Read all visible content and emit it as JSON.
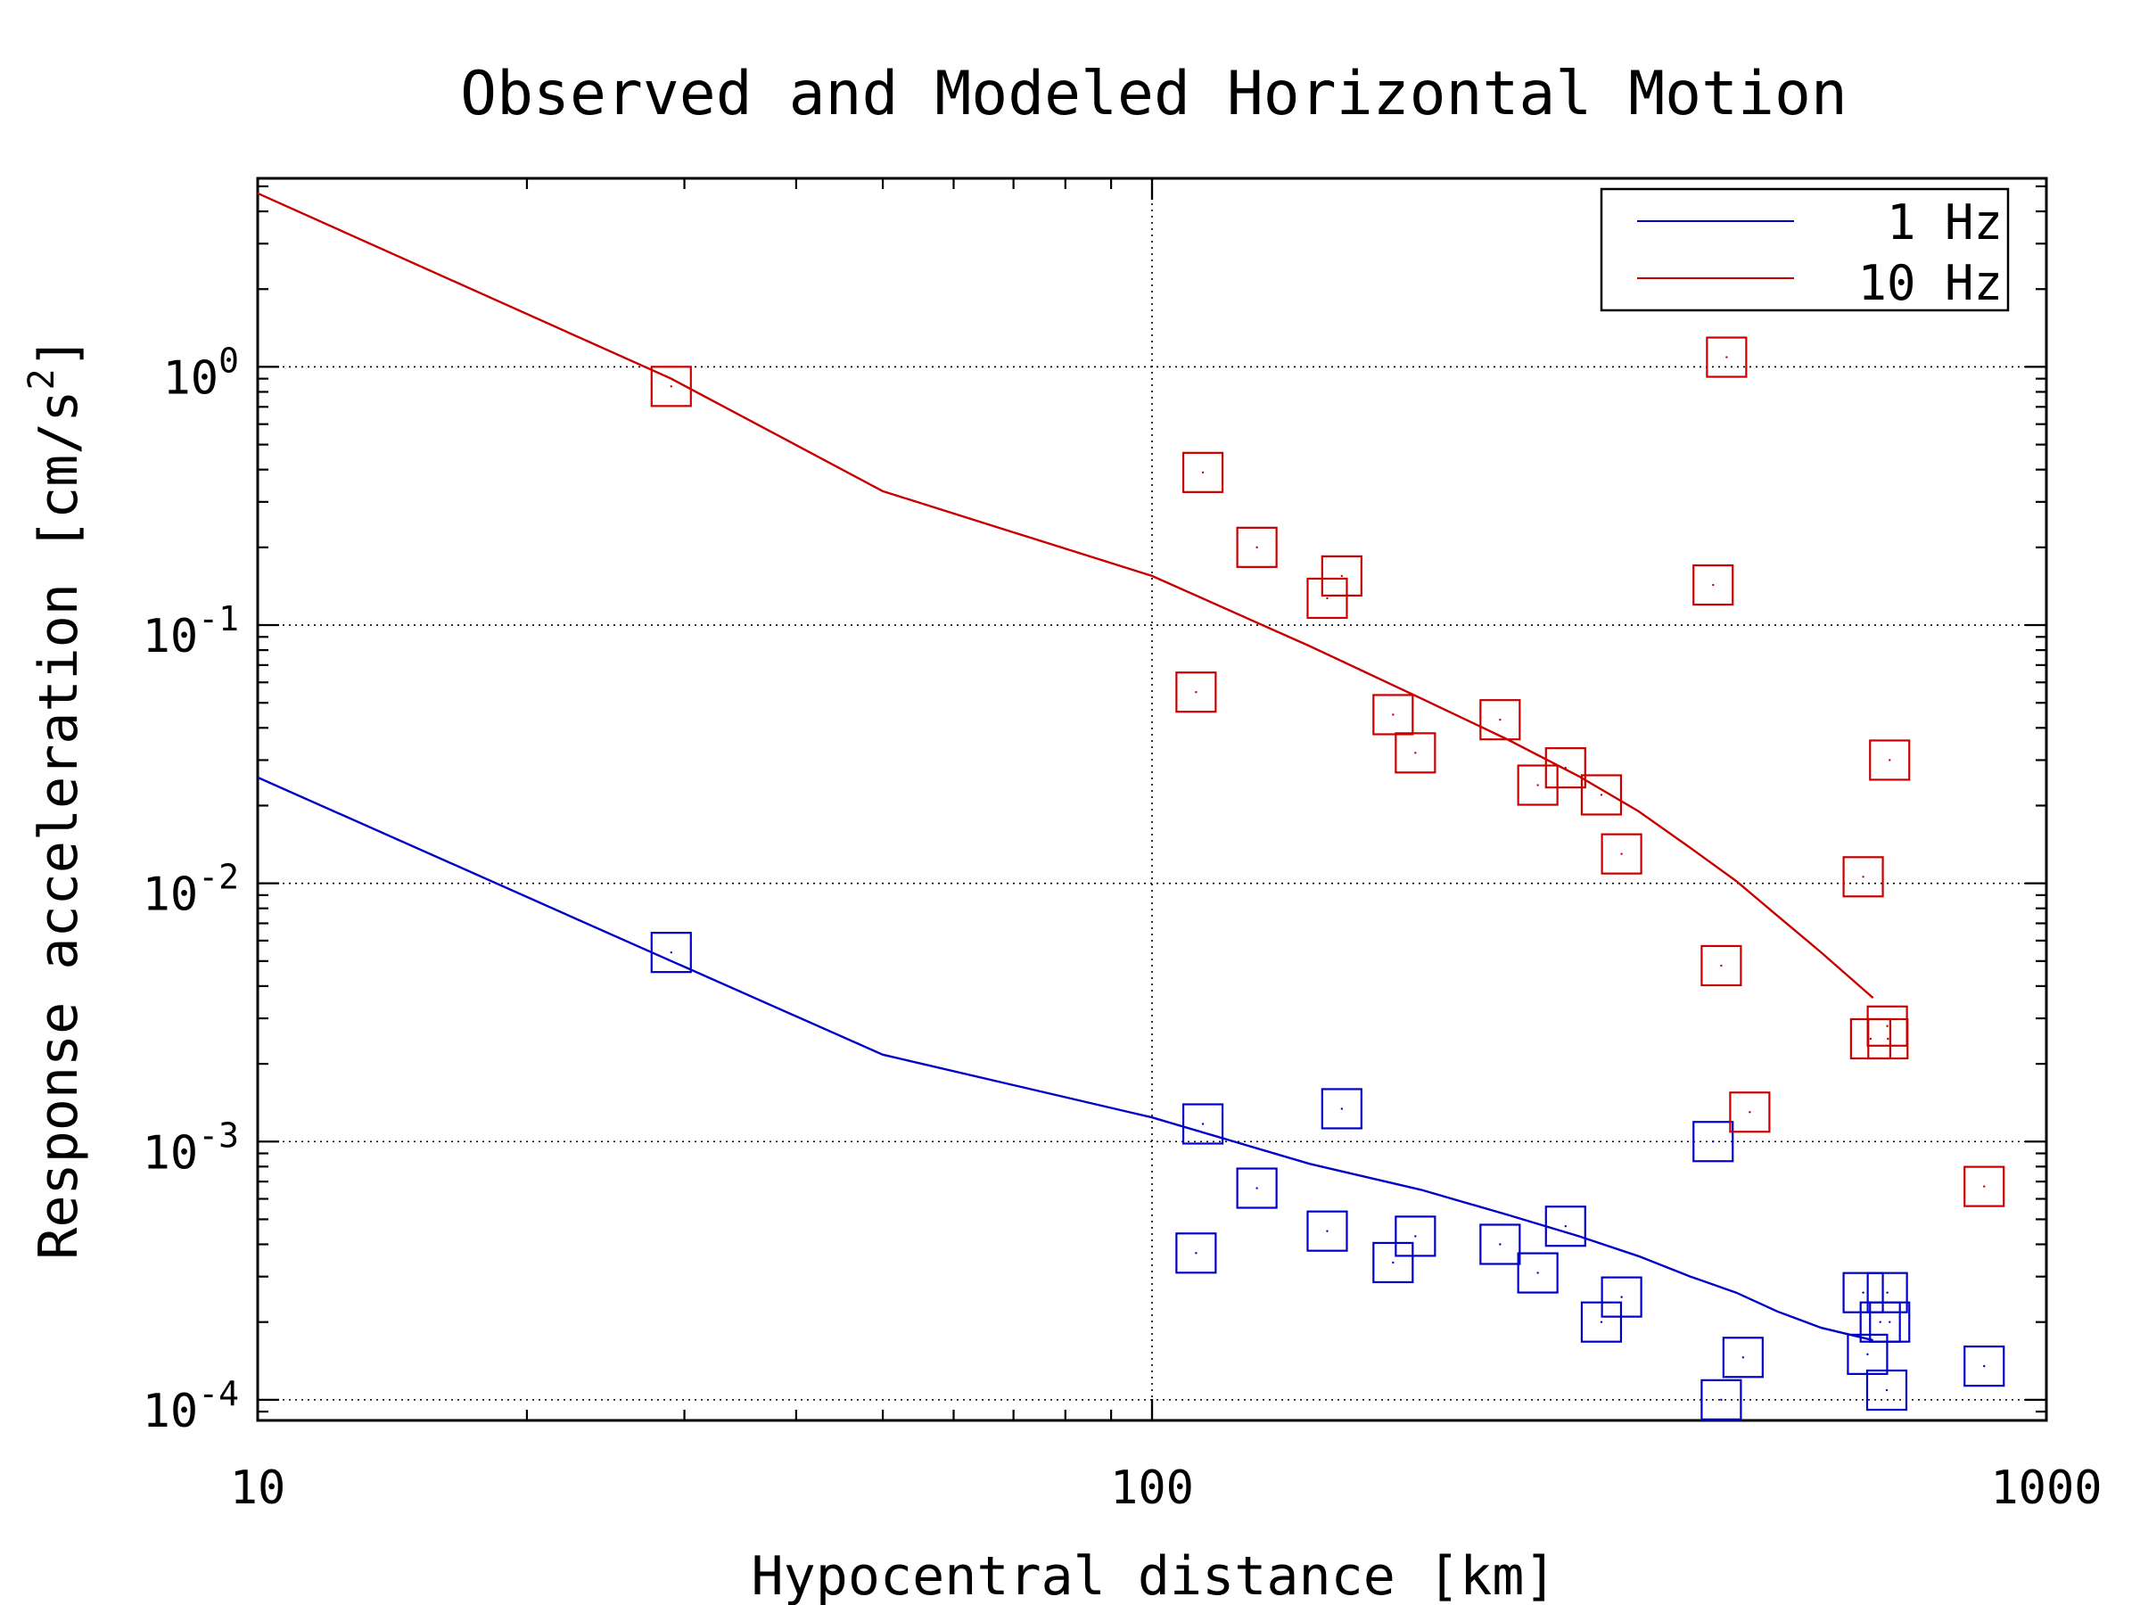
{
  "chart_data": {
    "type": "scatter",
    "title": "Observed and Modeled Horizontal Motion",
    "xlabel": "Hypocentral distance [km]",
    "ylabel": "Response acceleration [cm/s",
    "ylabel_superscript": "2",
    "ylabel_end": "]",
    "x_scale": "log",
    "y_scale": "log",
    "xlim": [
      10,
      1000
    ],
    "ylim": [
      8.32e-05,
      5.37
    ],
    "x_ticks": [
      {
        "value": 10,
        "label": "10"
      },
      {
        "value": 100,
        "label": "100"
      },
      {
        "value": 1000,
        "label": "1000"
      }
    ],
    "y_ticks": [
      {
        "value": 1,
        "base": "10",
        "exp": "0"
      },
      {
        "value": 0.1,
        "base": "10",
        "exp": "-1"
      },
      {
        "value": 0.01,
        "base": "10",
        "exp": "-2"
      },
      {
        "value": 0.001,
        "base": "10",
        "exp": "-3"
      },
      {
        "value": 0.0001,
        "base": "10",
        "exp": "-4"
      }
    ],
    "grid": true,
    "legend_position": "top-right",
    "series": [
      {
        "name": "1 Hz",
        "color": "#0000c8",
        "model_line": {
          "x": [
            10,
            29,
            50,
            100,
            150,
            200,
            250,
            300,
            350,
            400,
            450,
            500,
            560,
            640
          ],
          "y": [
            0.0257,
            0.005,
            0.00217,
            0.00124,
            0.00082,
            0.00065,
            0.00052,
            0.00043,
            0.00036,
            0.0003,
            0.00026,
            0.00022,
            0.00019,
            0.00017
          ]
        },
        "observed": {
          "x": [
            29,
            112,
            114,
            131,
            157,
            163,
            186,
            197,
            245,
            270,
            290,
            318,
            335,
            424,
            433,
            458,
            624,
            631,
            652,
            663,
            664,
            668,
            852
          ],
          "y": [
            0.0054,
            0.00037,
            0.00117,
            0.00066,
            0.00045,
            0.00134,
            0.00034,
            0.00043,
            0.0004,
            0.00031,
            0.00047,
            0.0002,
            0.00025,
            0.001,
            0.0001,
            0.000146,
            0.00026,
            0.00015,
            0.0002,
            0.000109,
            0.00026,
            0.0002,
            0.000135
          ]
        }
      },
      {
        "name": "10 Hz",
        "color": "#c80000",
        "model_line": {
          "x": [
            10,
            29,
            50,
            100,
            150,
            200,
            250,
            300,
            350,
            400,
            450,
            500,
            560,
            640
          ],
          "y": [
            4.7,
            0.9,
            0.33,
            0.155,
            0.083,
            0.052,
            0.036,
            0.026,
            0.019,
            0.0137,
            0.0102,
            0.0075,
            0.0054,
            0.0036
          ]
        },
        "observed": {
          "x": [
            29,
            112,
            114,
            131,
            157,
            163,
            186,
            197,
            245,
            270,
            290,
            318,
            335,
            424,
            433,
            439,
            466,
            624,
            636,
            664,
            665,
            668,
            852
          ],
          "y": [
            0.84,
            0.055,
            0.39,
            0.2,
            0.127,
            0.155,
            0.045,
            0.032,
            0.043,
            0.024,
            0.028,
            0.022,
            0.013,
            0.143,
            0.0048,
            1.09,
            0.0013,
            0.0106,
            0.0025,
            0.0028,
            0.0025,
            0.03,
            0.00067
          ]
        }
      }
    ]
  }
}
